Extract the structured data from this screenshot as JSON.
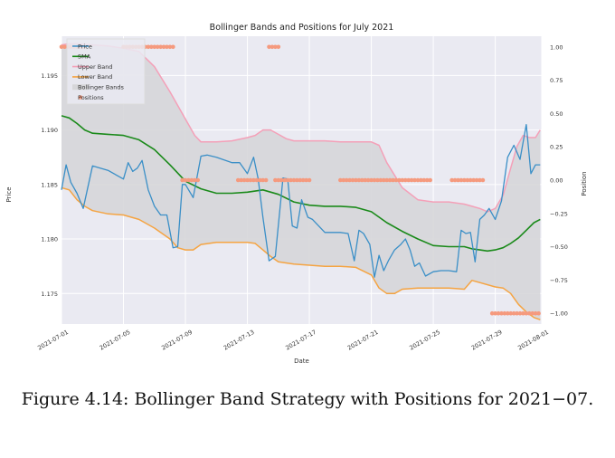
{
  "caption": "Figure 4.14: Bollinger Band Strategy with Positions for 2021−07.",
  "chart_data": {
    "type": "line",
    "title": "Bollinger Bands and Positions for July 2021",
    "xlabel": "Date",
    "ylabel": "Price",
    "y2label": "Position",
    "xlim": [
      0,
      31
    ],
    "ylim": [
      1.1722,
      1.1986
    ],
    "y2lim": [
      -1.08,
      1.08
    ],
    "x_ticks": [
      0,
      4,
      8,
      12,
      16,
      20,
      24,
      28,
      31
    ],
    "x_tick_labels": [
      "2021-07-01",
      "2021-07-05",
      "2021-07-09",
      "2021-07-13",
      "2021-07-17",
      "2021-07-21",
      "2021-07-25",
      "2021-07-29",
      "2021-08-01"
    ],
    "y_ticks": [
      1.175,
      1.18,
      1.185,
      1.19,
      1.195
    ],
    "y_tick_labels": [
      "1.175",
      "1.180",
      "1.185",
      "1.190",
      "1.195"
    ],
    "y2_ticks": [
      1.0,
      0.75,
      0.5,
      0.25,
      0.0,
      -0.25,
      -0.5,
      -0.75,
      -1.0
    ],
    "y2_tick_labels": [
      "1.00",
      "0.75",
      "0.50",
      "0.25",
      "0.00",
      "−0.25",
      "−0.50",
      "−0.75",
      "−1.00"
    ],
    "legend": {
      "placement": "top-left",
      "entries": [
        "Price",
        "SMA",
        "Upper Band",
        "Lower Band",
        "Bollinger Bands",
        "Positions"
      ]
    },
    "colors": {
      "price": "#3a8fc7",
      "sma": "#1a8a1a",
      "upper": "#f4a0b8",
      "lower": "#f5a442",
      "band_fill": "#d6d6d9",
      "positions": "#f59a7e",
      "plot_bg": "#eaeaf2",
      "grid": "#ffffff"
    },
    "series": [
      {
        "name": "Price",
        "x": [
          0,
          0.3,
          0.6,
          1.0,
          1.4,
          2.0,
          3.0,
          4.0,
          4.3,
          4.6,
          4.9,
          5.2,
          5.6,
          6.0,
          6.4,
          6.8,
          7.2,
          7.5,
          7.8,
          8.0,
          8.5,
          9.0,
          9.4,
          10.0,
          11.0,
          11.5,
          12.0,
          12.4,
          12.7,
          13.0,
          13.4,
          13.8,
          14.3,
          14.6,
          14.9,
          15.2,
          15.5,
          15.9,
          16.2,
          16.6,
          17.0,
          17.5,
          18.0,
          18.5,
          18.9,
          19.2,
          19.5,
          19.9,
          20.2,
          20.5,
          20.8,
          21.1,
          21.5,
          21.9,
          22.2,
          22.5,
          22.8,
          23.1,
          23.5,
          24.0,
          24.5,
          25.0,
          25.5,
          25.8,
          26.1,
          26.4,
          26.7,
          27.0,
          27.3,
          27.6,
          28.0,
          28.4,
          28.8,
          29.2,
          29.6,
          30.0,
          30.3,
          30.6,
          30.9
        ],
        "values": [
          1.1845,
          1.1868,
          1.1852,
          1.1842,
          1.1828,
          1.1867,
          1.1863,
          1.1855,
          1.187,
          1.1862,
          1.1865,
          1.1872,
          1.1845,
          1.183,
          1.1822,
          1.1822,
          1.1792,
          1.1793,
          1.185,
          1.185,
          1.1838,
          1.1876,
          1.1877,
          1.1875,
          1.187,
          1.187,
          1.186,
          1.1875,
          1.1855,
          1.182,
          1.178,
          1.1784,
          1.1856,
          1.1855,
          1.1812,
          1.181,
          1.1836,
          1.182,
          1.1818,
          1.1812,
          1.1806,
          1.1806,
          1.1806,
          1.1805,
          1.178,
          1.1808,
          1.1805,
          1.1795,
          1.1765,
          1.1785,
          1.1771,
          1.178,
          1.179,
          1.1795,
          1.18,
          1.179,
          1.1775,
          1.1778,
          1.1766,
          1.177,
          1.1771,
          1.1771,
          1.177,
          1.1808,
          1.1805,
          1.1806,
          1.1779,
          1.1818,
          1.1822,
          1.1828,
          1.1818,
          1.1835,
          1.1875,
          1.1886,
          1.1873,
          1.1905,
          1.186,
          1.1868,
          1.1868
        ]
      },
      {
        "name": "SMA",
        "x": [
          0,
          0.5,
          1.0,
          1.5,
          2.0,
          3.0,
          4.0,
          5.0,
          6.0,
          7.0,
          8.0,
          9.0,
          10.0,
          11.0,
          12.0,
          13.0,
          14.0,
          15.0,
          16.0,
          17.0,
          18.0,
          19.0,
          20.0,
          21.0,
          22.0,
          23.0,
          24.0,
          25.0,
          26.0,
          26.5,
          27.0,
          27.5,
          28.0,
          28.5,
          29.0,
          29.5,
          30.0,
          30.5,
          30.9
        ],
        "values": [
          1.1913,
          1.1911,
          1.1906,
          1.19,
          1.1897,
          1.1896,
          1.1895,
          1.1891,
          1.1882,
          1.1868,
          1.1853,
          1.1846,
          1.1842,
          1.1842,
          1.1843,
          1.1845,
          1.1841,
          1.1834,
          1.1831,
          1.183,
          1.183,
          1.1829,
          1.1825,
          1.1815,
          1.1807,
          1.18,
          1.1794,
          1.1793,
          1.1793,
          1.1791,
          1.179,
          1.1789,
          1.179,
          1.1792,
          1.1796,
          1.1801,
          1.1808,
          1.1815,
          1.1818
        ]
      },
      {
        "name": "Upper Band",
        "x": [
          0,
          0.5,
          1.0,
          2.0,
          3.0,
          4.0,
          5.0,
          6.0,
          7.0,
          8.0,
          8.6,
          9.0,
          10.0,
          11.0,
          12.0,
          12.5,
          13.0,
          13.5,
          14.0,
          14.5,
          15.0,
          16.0,
          17.0,
          18.0,
          19.0,
          20.0,
          20.5,
          21.0,
          22.0,
          23.0,
          24.0,
          25.0,
          26.0,
          26.5,
          27.0,
          27.5,
          28.0,
          28.5,
          29.0,
          29.4,
          29.8,
          30.2,
          30.6,
          30.9
        ],
        "values": [
          1.1978,
          1.1979,
          1.1979,
          1.1978,
          1.1977,
          1.1975,
          1.1972,
          1.1958,
          1.1935,
          1.191,
          1.1895,
          1.1889,
          1.1889,
          1.189,
          1.1893,
          1.1895,
          1.19,
          1.19,
          1.1896,
          1.1892,
          1.189,
          1.189,
          1.189,
          1.1889,
          1.1889,
          1.1889,
          1.1886,
          1.187,
          1.1847,
          1.1836,
          1.1834,
          1.1834,
          1.1832,
          1.183,
          1.1828,
          1.1825,
          1.1828,
          1.184,
          1.1865,
          1.1885,
          1.1895,
          1.1893,
          1.1893,
          1.19
        ]
      },
      {
        "name": "Lower Band",
        "x": [
          0,
          0.5,
          1.0,
          1.5,
          2.0,
          3.0,
          4.0,
          5.0,
          6.0,
          7.0,
          7.5,
          8.0,
          8.5,
          9.0,
          10.0,
          11.0,
          12.0,
          12.5,
          13.0,
          13.5,
          14.0,
          15.0,
          16.0,
          17.0,
          18.0,
          19.0,
          20.0,
          20.5,
          21.0,
          21.5,
          22.0,
          23.0,
          24.0,
          25.0,
          26.0,
          26.5,
          27.0,
          28.0,
          28.5,
          29.0,
          29.5,
          30.0,
          30.5,
          30.9
        ],
        "values": [
          1.1847,
          1.1845,
          1.1836,
          1.183,
          1.1826,
          1.1823,
          1.1822,
          1.1818,
          1.181,
          1.18,
          1.1792,
          1.179,
          1.179,
          1.1795,
          1.1797,
          1.1797,
          1.1797,
          1.1796,
          1.179,
          1.1784,
          1.1779,
          1.1777,
          1.1776,
          1.1775,
          1.1775,
          1.1774,
          1.1767,
          1.1755,
          1.175,
          1.175,
          1.1754,
          1.1755,
          1.1755,
          1.1755,
          1.1754,
          1.1762,
          1.176,
          1.1756,
          1.1755,
          1.175,
          1.174,
          1.1733,
          1.1728,
          1.1726
        ]
      },
      {
        "name": "Positions",
        "axis": "y2",
        "x": [
          0.0,
          0.2,
          0.4,
          0.6,
          0.8,
          1.0,
          1.2,
          1.4,
          4.0,
          4.2,
          4.4,
          4.6,
          4.8,
          5.0,
          5.2,
          5.4,
          5.6,
          5.8,
          6.0,
          6.2,
          6.4,
          6.6,
          6.8,
          7.0,
          7.2,
          13.4,
          13.6,
          13.8,
          14.0,
          7.8,
          8.0,
          8.2,
          8.4,
          8.6,
          8.8,
          11.4,
          11.6,
          11.8,
          12.0,
          12.2,
          12.4,
          12.6,
          12.8,
          13.0,
          13.2,
          13.8,
          14.0,
          14.2,
          14.4,
          14.6,
          14.8,
          15.0,
          15.2,
          15.4,
          15.6,
          15.8,
          16.0,
          18.0,
          18.2,
          18.4,
          18.6,
          18.8,
          19.0,
          19.2,
          19.4,
          19.6,
          19.8,
          20.0,
          20.2,
          20.4,
          20.6,
          20.8,
          21.0,
          21.2,
          21.4,
          21.6,
          21.8,
          22.0,
          22.2,
          22.4,
          22.6,
          22.8,
          23.0,
          23.2,
          23.4,
          23.6,
          23.8,
          25.2,
          25.4,
          25.6,
          25.8,
          26.0,
          26.2,
          26.4,
          26.6,
          26.8,
          27.0,
          27.2,
          27.8,
          28.0,
          28.2,
          28.4,
          28.6,
          28.8,
          29.0,
          29.2,
          29.4,
          29.6,
          29.8,
          30.0,
          30.2,
          30.4,
          30.6,
          30.8
        ],
        "values": [
          1,
          1,
          1,
          1,
          1,
          1,
          1,
          1,
          1,
          1,
          1,
          1,
          1,
          1,
          1,
          1,
          1,
          1,
          1,
          1,
          1,
          1,
          1,
          1,
          1,
          1,
          1,
          1,
          1,
          0,
          0,
          0,
          0,
          0,
          0,
          0,
          0,
          0,
          0,
          0,
          0,
          0,
          0,
          0,
          0,
          0,
          0,
          0,
          0,
          0,
          0,
          0,
          0,
          0,
          0,
          0,
          0,
          0,
          0,
          0,
          0,
          0,
          0,
          0,
          0,
          0,
          0,
          0,
          0,
          0,
          0,
          0,
          0,
          0,
          0,
          0,
          0,
          0,
          0,
          0,
          0,
          0,
          0,
          0,
          0,
          0,
          0,
          0,
          0,
          0,
          0,
          0,
          0,
          0,
          0,
          0,
          0,
          0,
          -1,
          -1,
          -1,
          -1,
          -1,
          -1,
          -1,
          -1,
          -1,
          -1,
          -1,
          -1,
          -1,
          -1,
          -1,
          -1
        ]
      }
    ]
  }
}
